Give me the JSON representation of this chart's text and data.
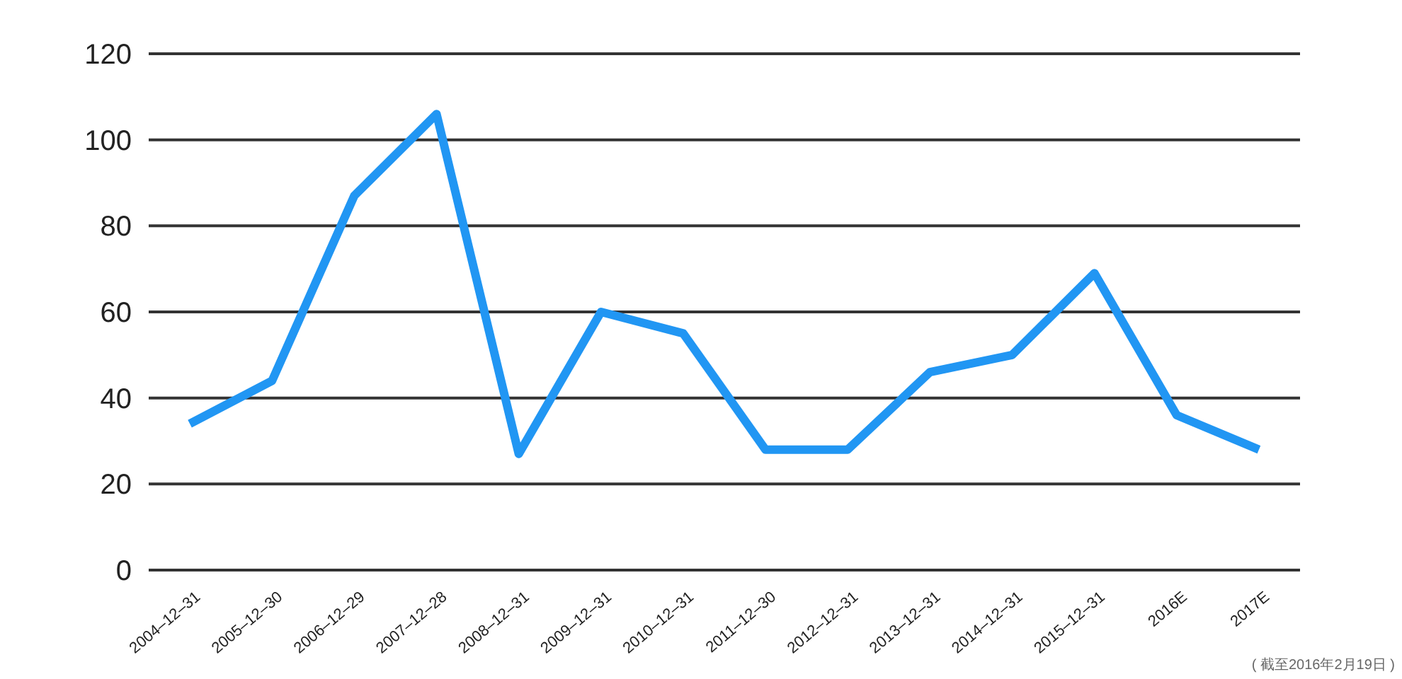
{
  "chart_data": {
    "type": "line",
    "categories": [
      "2004–12–31",
      "2005–12–30",
      "2006–12–29",
      "2007–12–28",
      "2008–12–31",
      "2009–12–31",
      "2010–12–31",
      "2011–12–30",
      "2012–12–31",
      "2013–12–31",
      "2014–12–31",
      "2015–12–31",
      "2016E",
      "2017E"
    ],
    "values": [
      34,
      44,
      87,
      106,
      27,
      60,
      55,
      28,
      28,
      46,
      50,
      69,
      36,
      28
    ],
    "color": "#2196f3",
    "ylim": [
      0,
      120
    ],
    "yticks": [
      0,
      20,
      40,
      60,
      80,
      100,
      120
    ],
    "grid": "y",
    "annotations": [
      "( 截至2016年2月19日 )"
    ]
  }
}
